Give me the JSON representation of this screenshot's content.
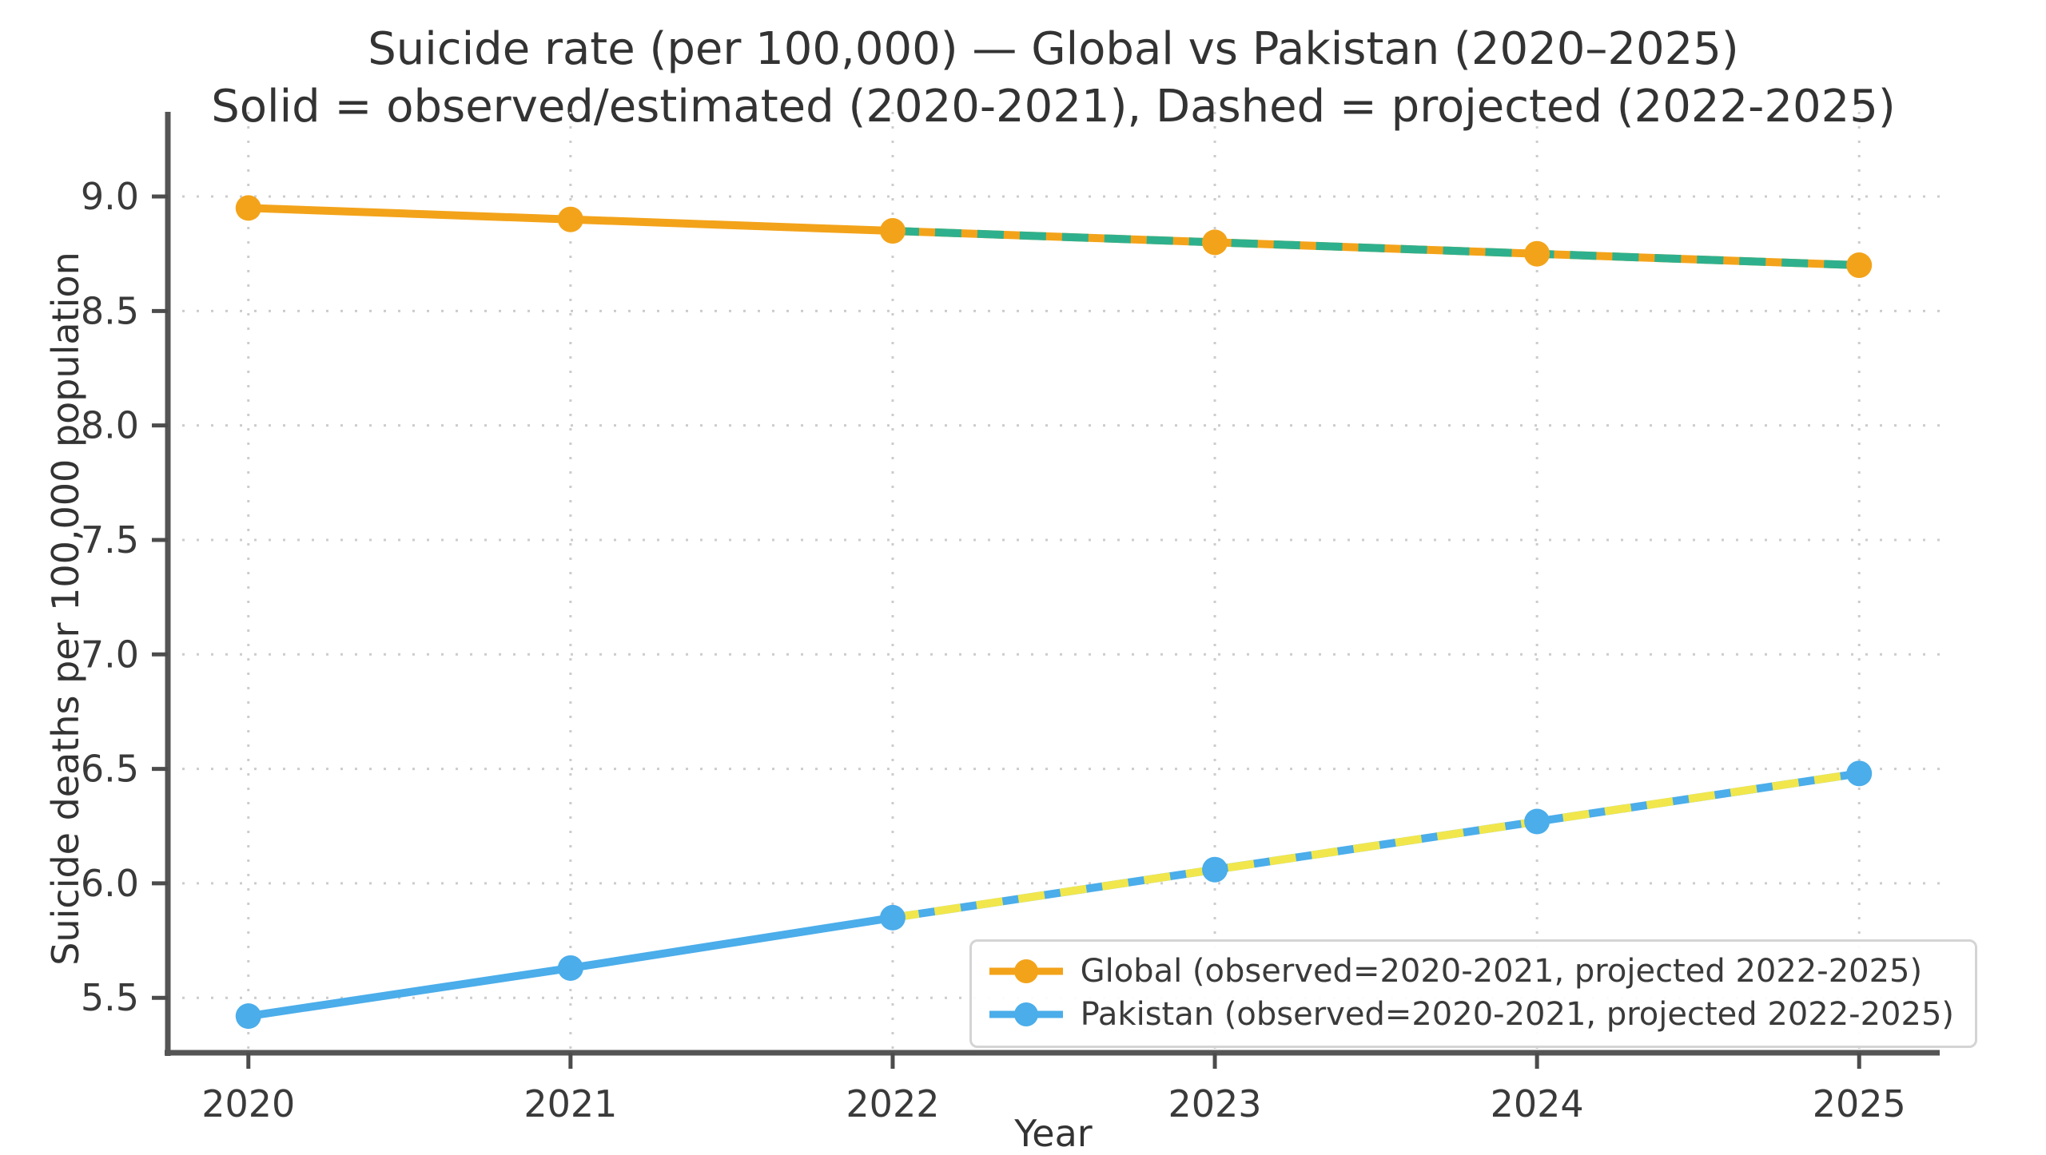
{
  "page": {
    "background": "#ffffff"
  },
  "chart": {
    "title": "Suicide rate (per 100,000) — Global vs Pakistan (2020–2025)",
    "subtitle": "Solid = observed/estimated (2020-2021), Dashed = projected (2022-2025)",
    "xlabel": "Year",
    "ylabel": "Suicide deaths per 100,000 population"
  },
  "legend": {
    "position": "lower right",
    "items": [
      {
        "label": "Global (observed=2020-2021, projected 2022-2025)"
      },
      {
        "label": "Pakistan (observed=2020-2021, projected 2022-2025)"
      }
    ]
  },
  "style": {
    "grid_color": "#cccccc",
    "spine_color": "#555555",
    "tick_color": "#4c4c4c",
    "text_color": "#3a3a3a",
    "legend_border_color": "#d4d4d4",
    "background": "#ffffff"
  },
  "chart_data": {
    "type": "line",
    "title": "Suicide rate (per 100,000) — Global vs Pakistan (2020–2025)",
    "subtitle": "Solid = observed/estimated (2020-2021), Dashed = projected (2022-2025)",
    "xlabel": "Year",
    "ylabel": "Suicide deaths per 100,000 population",
    "x": [
      2020,
      2021,
      2022,
      2023,
      2024,
      2025
    ],
    "xtick_labels": [
      "2020",
      "2021",
      "2022",
      "2023",
      "2024",
      "2025"
    ],
    "yticks": [
      5.5,
      6.0,
      6.5,
      7.0,
      7.5,
      8.0,
      8.5,
      9.0
    ],
    "ytick_labels": [
      "5.5",
      "6.0",
      "6.5",
      "7.0",
      "7.5",
      "8.0",
      "8.5",
      "9.0"
    ],
    "xlim": [
      2019.75,
      2025.25
    ],
    "ylim": [
      5.26,
      9.37
    ],
    "grid": "dotted",
    "legend_position": "lower right",
    "series": [
      {
        "name": "Global",
        "color": "#f3a31a",
        "projected_overlay_color": "#2fb08d",
        "projected_from": 2022,
        "values": [
          8.95,
          8.9,
          8.85,
          8.8,
          8.75,
          8.7
        ]
      },
      {
        "name": "Pakistan",
        "color": "#4badea",
        "projected_overlay_color": "#f1e74c",
        "projected_from": 2022,
        "values": [
          5.42,
          5.63,
          5.85,
          6.06,
          6.27,
          6.48
        ]
      }
    ]
  }
}
